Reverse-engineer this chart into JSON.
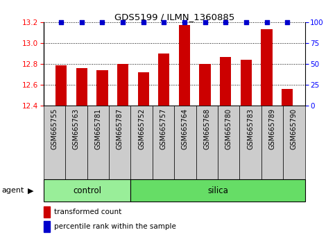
{
  "title": "GDS5199 / ILMN_1360885",
  "samples": [
    "GSM665755",
    "GSM665763",
    "GSM665781",
    "GSM665787",
    "GSM665752",
    "GSM665757",
    "GSM665764",
    "GSM665768",
    "GSM665780",
    "GSM665783",
    "GSM665789",
    "GSM665790"
  ],
  "transformed_counts": [
    12.79,
    12.76,
    12.74,
    12.8,
    12.72,
    12.9,
    13.17,
    12.8,
    12.87,
    12.84,
    13.13,
    12.56
  ],
  "percentile_ranks": [
    100,
    100,
    100,
    100,
    100,
    100,
    100,
    100,
    100,
    100,
    100,
    100
  ],
  "ylim_left": [
    12.4,
    13.2
  ],
  "ylim_right": [
    0,
    100
  ],
  "yticks_left": [
    12.4,
    12.6,
    12.8,
    13.0,
    13.2
  ],
  "yticks_right": [
    0,
    25,
    50,
    75,
    100
  ],
  "bar_color": "#cc0000",
  "dot_color": "#0000cc",
  "bar_bottom": 12.4,
  "control_color": "#99ee99",
  "silica_color": "#66dd66",
  "ctrl_count": 4,
  "silica_count": 8,
  "legend_bar_label": "transformed count",
  "legend_dot_label": "percentile rank within the sample",
  "bar_width": 0.55,
  "sample_box_color": "#cccccc",
  "grid_linestyle": "dotted"
}
